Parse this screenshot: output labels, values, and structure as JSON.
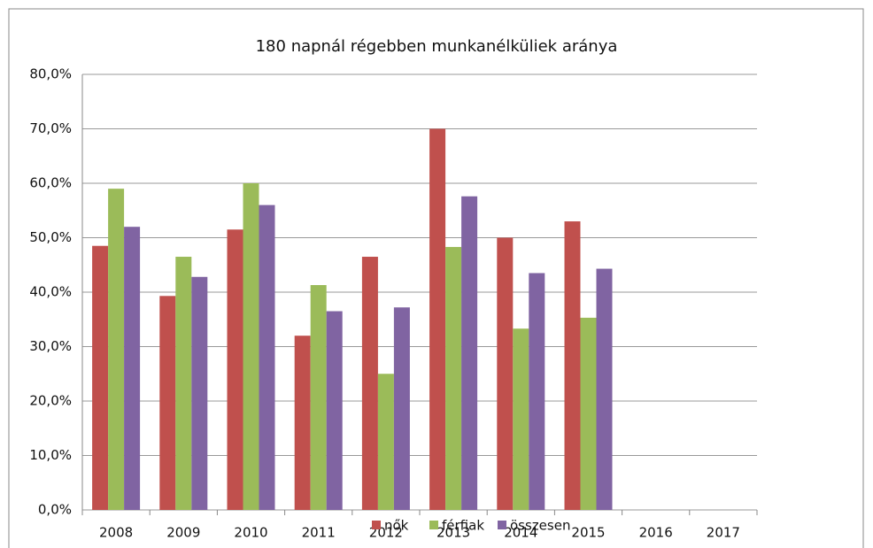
{
  "chart_data": {
    "type": "bar",
    "title": "180 napnál régebben munkanélküliek aránya",
    "categories": [
      "2008",
      "2009",
      "2010",
      "2011",
      "2012",
      "2013",
      "2014",
      "2015",
      "2016",
      "2017"
    ],
    "series": [
      {
        "name": "nők",
        "color": "#c0504d",
        "values": [
          48.5,
          39.3,
          51.5,
          32,
          46.5,
          70,
          50,
          53,
          null,
          null
        ]
      },
      {
        "name": "férfiak",
        "color": "#9bbb59",
        "values": [
          59,
          46.5,
          60,
          41.3,
          25,
          48.3,
          33.3,
          35.3,
          null,
          null
        ]
      },
      {
        "name": "összesen",
        "color": "#8064a2",
        "values": [
          52,
          42.8,
          56,
          36.5,
          37.2,
          57.6,
          43.5,
          44.3,
          null,
          null
        ]
      }
    ],
    "ylim": [
      0,
      80
    ],
    "yticks": [
      {
        "value": 0,
        "label": "0,0%"
      },
      {
        "value": 10,
        "label": "10,0%"
      },
      {
        "value": 20,
        "label": "20,0%"
      },
      {
        "value": 30,
        "label": "30,0%"
      },
      {
        "value": 40,
        "label": "40,0%"
      },
      {
        "value": 50,
        "label": "50,0%"
      },
      {
        "value": 60,
        "label": "60,0%"
      },
      {
        "value": 70,
        "label": "70,0%"
      },
      {
        "value": 80,
        "label": "80,0%"
      }
    ],
    "grid": true,
    "legend": "bottom"
  }
}
